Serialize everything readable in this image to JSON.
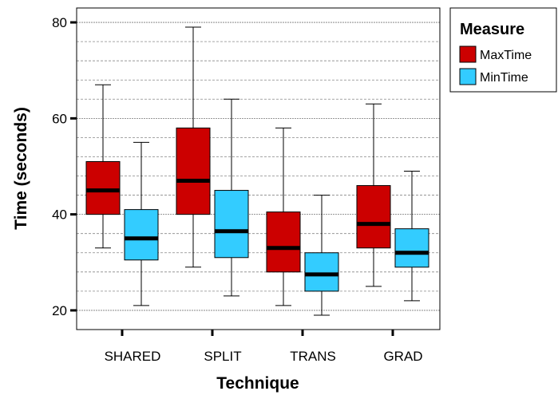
{
  "chart_data": {
    "type": "boxplot",
    "xlabel": "Technique",
    "ylabel": "Time (seconds)",
    "categories": [
      "SHARED",
      "SPLIT",
      "TRANS",
      "GRAD"
    ],
    "ylim": [
      16,
      83
    ],
    "yticks": [
      20,
      40,
      60,
      80
    ],
    "grid": "horizontal-dashed",
    "legend": {
      "title": "Measure",
      "position": "top-right"
    },
    "series": [
      {
        "name": "MaxTime",
        "color": "#cc0000",
        "boxes": [
          {
            "min": 33,
            "q1": 40,
            "median": 45,
            "q3": 51,
            "max": 67
          },
          {
            "min": 29,
            "q1": 40,
            "median": 47,
            "q3": 58,
            "max": 79
          },
          {
            "min": 21,
            "q1": 28,
            "median": 33,
            "q3": 40.5,
            "max": 58
          },
          {
            "min": 25,
            "q1": 33,
            "median": 38,
            "q3": 46,
            "max": 63
          }
        ]
      },
      {
        "name": "MinTime",
        "color": "#33ccff",
        "boxes": [
          {
            "min": 21,
            "q1": 30.5,
            "median": 35,
            "q3": 41,
            "max": 55
          },
          {
            "min": 23,
            "q1": 31,
            "median": 36.5,
            "q3": 45,
            "max": 64
          },
          {
            "min": 19,
            "q1": 24,
            "median": 27.5,
            "q3": 32,
            "max": 44
          },
          {
            "min": 22,
            "q1": 29,
            "median": 32,
            "q3": 37,
            "max": 49
          }
        ]
      }
    ]
  }
}
